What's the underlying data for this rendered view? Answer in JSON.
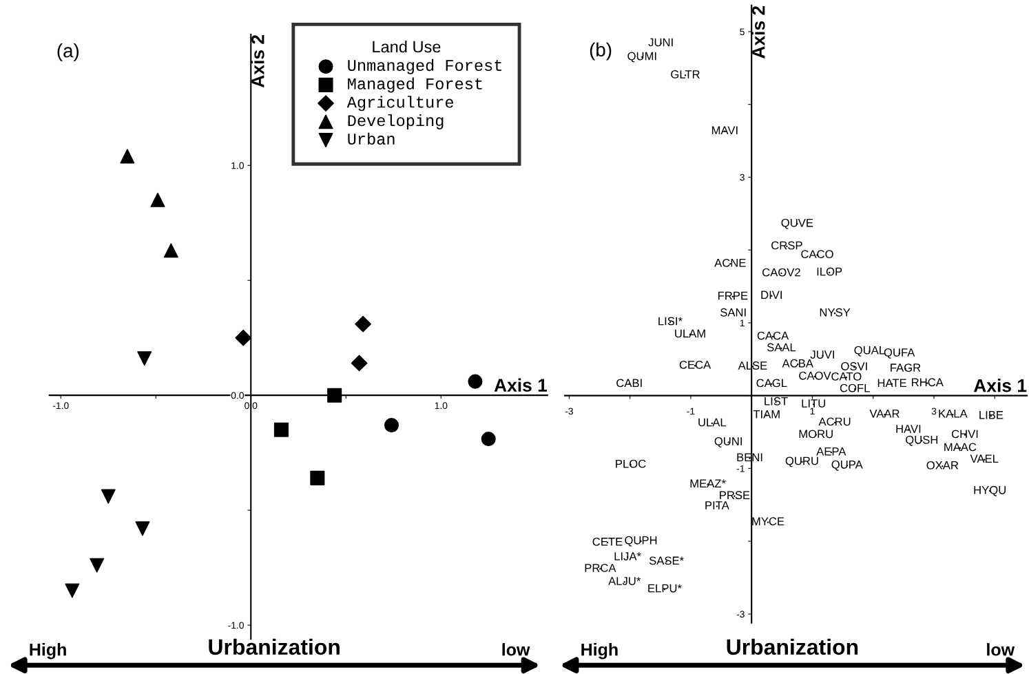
{
  "chart_data": [
    {
      "type": "scatter",
      "title": "(a)",
      "xlabel": "Axis 1",
      "ylabel": "Axis 2",
      "legend_title": "Land Use",
      "legend": "top right",
      "grid": false,
      "xlim": [
        -1.06,
        1.56
      ],
      "ylim": [
        -1.06,
        1.57
      ],
      "xticks": [
        {
          "value": -1.0,
          "label": "-1.0"
        },
        {
          "value": -0.5,
          "label": null
        },
        {
          "value": 0.0,
          "label": "0.0"
        },
        {
          "value": 0.5,
          "label": null
        },
        {
          "value": 1.0,
          "label": "1.0"
        }
      ],
      "yticks": [
        {
          "value": -1.0,
          "label": "-1.0"
        },
        {
          "value": -0.5,
          "label": null
        },
        {
          "value": 0.0,
          "label": "0.0"
        },
        {
          "value": 0.5,
          "label": null
        },
        {
          "value": 1.0,
          "label": "1.0"
        }
      ],
      "series": [
        {
          "name": "Unmanaged Forest",
          "color": "#000000",
          "marker": "circle",
          "x": [
            0.74,
            1.18,
            1.25
          ],
          "values": [
            -0.13,
            0.06,
            -0.19
          ]
        },
        {
          "name": "Managed Forest",
          "color": "#000000",
          "marker": "square",
          "x": [
            0.44,
            0.16,
            0.35
          ],
          "values": [
            0.0,
            -0.15,
            -0.36
          ]
        },
        {
          "name": "Agriculture",
          "color": "#000000",
          "marker": "diamond",
          "x": [
            -0.04,
            0.59,
            0.57
          ],
          "values": [
            0.25,
            0.31,
            0.14
          ]
        },
        {
          "name": "Developing",
          "color": "#000000",
          "marker": "triangle",
          "x": [
            -0.65,
            -0.49,
            -0.42
          ],
          "values": [
            1.04,
            0.85,
            0.63
          ]
        },
        {
          "name": "Urban",
          "color": "#000000",
          "marker": "triangle_down",
          "x": [
            -0.56,
            -0.75,
            -0.57,
            -0.81,
            -0.94
          ],
          "values": [
            0.16,
            -0.44,
            -0.58,
            -0.74,
            -0.85
          ]
        }
      ],
      "annotations": [
        "High",
        "Urbanization",
        "low"
      ]
    },
    {
      "type": "scatter",
      "title": "(b)",
      "xlabel": "Axis 1",
      "ylabel": "Axis 2",
      "grid": false,
      "marker": "none",
      "xlim": [
        -3.07,
        4.53
      ],
      "ylim": [
        -3.12,
        5.36
      ],
      "xticks": [
        -3,
        {
          "value": -2,
          "label": null
        },
        -1,
        {
          "value": 0,
          "label": null
        },
        1,
        {
          "value": 2,
          "label": null
        },
        3,
        {
          "value": 4,
          "label": null
        }
      ],
      "yticks": [
        -3,
        {
          "value": -2,
          "label": null
        },
        -1,
        {
          "value": 0,
          "label": null
        },
        1,
        {
          "value": 2,
          "label": null
        },
        3,
        {
          "value": 4,
          "label": null
        },
        5
      ],
      "series": [
        {
          "color": "#000000",
          "x": [
            -1.49,
            -1.8,
            -1.09,
            -0.44,
            0.75,
            0.58,
            1.08,
            -0.35,
            0.49,
            1.28,
            -0.31,
            0.33,
            -0.3,
            1.37,
            -1.34,
            -1.01,
            0.35,
            0.49,
            1.94,
            2.43,
            1.17,
            0.76,
            -0.93,
            0.02,
            1.69,
            2.53,
            1.04,
            1.56,
            0.33,
            -2.01,
            2.31,
            2.89,
            1.7,
            0.4,
            1.02,
            0.25,
            2.19,
            3.31,
            3.94,
            -0.65,
            1.37,
            2.58,
            1.06,
            3.51,
            2.8,
            -0.38,
            3.43,
            1.31,
            -0.03,
            3.83,
            0.83,
            1.57,
            -1.99,
            3.14,
            -0.72,
            3.92,
            -0.28,
            -0.57,
            0.27,
            -2.37,
            -1.82,
            -2.04,
            -1.4,
            -2.49,
            -2.09,
            -1.43
          ],
          "values": [
            4.84,
            4.65,
            4.4,
            3.63,
            2.36,
            2.05,
            1.93,
            1.81,
            1.68,
            1.69,
            1.36,
            1.37,
            1.13,
            1.13,
            1.01,
            0.84,
            0.81,
            0.65,
            0.61,
            0.58,
            0.55,
            0.43,
            0.41,
            0.4,
            0.39,
            0.37,
            0.26,
            0.25,
            0.16,
            0.16,
            0.16,
            0.17,
            0.09,
            -0.09,
            -0.12,
            -0.27,
            -0.26,
            -0.26,
            -0.28,
            -0.38,
            -0.37,
            -0.47,
            -0.54,
            -0.54,
            -0.62,
            -0.64,
            -0.72,
            -0.78,
            -0.86,
            -0.88,
            -0.91,
            -0.96,
            -0.95,
            -0.97,
            -1.22,
            -1.31,
            -1.38,
            -1.52,
            -1.74,
            -2.02,
            -2.0,
            -2.22,
            -2.28,
            -2.38,
            -2.56,
            -2.66
          ],
          "value_labels": [
            "JUNI",
            "QUMI",
            "GLTR",
            "MAVI",
            "QUVE",
            "CRSP",
            "CACO",
            "ACNE",
            "CAOV2",
            "ILOP",
            "FRPE",
            "DIVI",
            "SANI",
            "NYSY",
            "LISI*",
            "ULAM",
            "CACA",
            "SAAL",
            "QUAL",
            "QUFA",
            "JUVI",
            "ACBA",
            "CECA",
            "ALSE",
            "OSVI",
            "FAGR",
            "CAOV",
            "CATO",
            "CAGL",
            "CABI",
            "HATE",
            "RHCA",
            "COFL",
            "LIST",
            "LITU",
            "TIAM",
            "VAAR",
            "KALA",
            "LIBE",
            "ULAL",
            "ACRU",
            "HAVI",
            "MORU",
            "CHVI",
            "QUSH",
            "QUNI",
            "MAAC",
            "AEPA",
            "BENI",
            "VAEL",
            "QURU",
            "QUPA",
            "PLOC",
            "OXAR",
            "MEAZ*",
            "HYQU",
            "PRSE",
            "PITA",
            "MYCE",
            "CETE",
            "QUPH",
            "LIJA*",
            "SASE*",
            "PRCA",
            "ALJU*",
            "ELPU*"
          ]
        }
      ],
      "annotations": [
        "High",
        "Urbanization",
        "low"
      ]
    }
  ]
}
